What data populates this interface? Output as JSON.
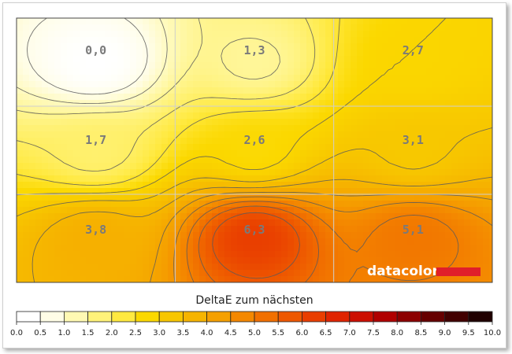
{
  "chart_data": {
    "type": "heatmap",
    "title": "",
    "xlabel": "",
    "ylabel": "",
    "rows": 3,
    "cols": 3,
    "values": [
      [
        0.0,
        1.3,
        2.7
      ],
      [
        1.7,
        2.6,
        3.1
      ],
      [
        3.8,
        6.3,
        5.1
      ]
    ],
    "labels": [
      [
        "0,0",
        "1,3",
        "2,7"
      ],
      [
        "1,7",
        "2,6",
        "3,1"
      ],
      [
        "3,8",
        "6,3",
        "5,1"
      ]
    ],
    "color_scale": {
      "title": "DeltaE zum nächsten",
      "min": 0,
      "max": 10,
      "ticks": [
        "0.0",
        "0.5",
        "1.0",
        "1.5",
        "2.0",
        "2.5",
        "3.0",
        "3.5",
        "4.0",
        "4.5",
        "5.0",
        "5.5",
        "6.0",
        "6.5",
        "7.0",
        "7.5",
        "8.0",
        "8.5",
        "9.0",
        "9.5",
        "10.0"
      ],
      "colors": [
        "#ffffff",
        "#fffde6",
        "#fff9b3",
        "#fff27a",
        "#ffe940",
        "#fbd800",
        "#f7c600",
        "#f6b400",
        "#f5a000",
        "#f48800",
        "#f17000",
        "#ee5800",
        "#e93e00",
        "#e02400",
        "#cc0f00",
        "#b00000",
        "#8c0000",
        "#660000",
        "#420000",
        "#200000"
      ]
    },
    "grid": true,
    "contours": true
  },
  "logo": {
    "text": "datacolor",
    "color": "#e01f2a"
  }
}
